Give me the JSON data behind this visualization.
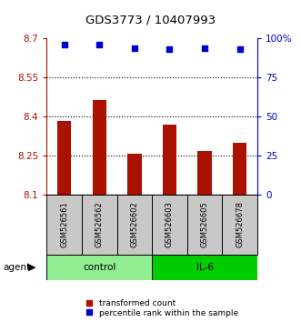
{
  "title": "GDS3773 / 10407993",
  "samples": [
    "GSM526561",
    "GSM526562",
    "GSM526602",
    "GSM526603",
    "GSM526605",
    "GSM526678"
  ],
  "bar_values": [
    8.385,
    8.465,
    8.258,
    8.37,
    8.268,
    8.3
  ],
  "percentile_values": [
    96,
    96,
    94,
    93,
    94,
    93
  ],
  "bar_color": "#AA1100",
  "dot_color": "#0000CC",
  "ylim_left": [
    8.1,
    8.7
  ],
  "ylim_right": [
    0,
    100
  ],
  "yticks_left": [
    8.1,
    8.25,
    8.4,
    8.55,
    8.7
  ],
  "ytick_labels_left": [
    "8.1",
    "8.25",
    "8.4",
    "8.55",
    "8.7"
  ],
  "yticks_right": [
    0,
    25,
    50,
    75,
    100
  ],
  "ytick_labels_right": [
    "0",
    "25",
    "50",
    "75",
    "100%"
  ],
  "groups": [
    {
      "label": "control",
      "indices": [
        0,
        1,
        2
      ],
      "color": "#90EE90"
    },
    {
      "label": "IL-6",
      "indices": [
        3,
        4,
        5
      ],
      "color": "#00CC00"
    }
  ],
  "agent_label": "agent",
  "legend": [
    {
      "label": "transformed count",
      "color": "#AA1100",
      "marker": "s"
    },
    {
      "label": "percentile rank within the sample",
      "color": "#0000CC",
      "marker": "s"
    }
  ],
  "grid_dotted_ticks": [
    8.1,
    8.25,
    8.4,
    8.55
  ],
  "background_color": "#ffffff",
  "left_axis_color": "#AA1100",
  "right_axis_color": "#0000CC",
  "sample_box_color": "#C8C8C8",
  "bar_width": 0.4
}
